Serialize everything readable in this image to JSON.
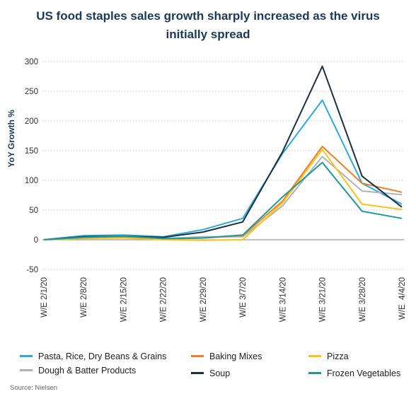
{
  "title": {
    "line1": "US food staples sales growth sharply increased as the virus",
    "line2": "initially spread"
  },
  "source": "Source: Nielsen",
  "chart_data": {
    "type": "line",
    "ylabel": "YoY Growth %",
    "xlabel": "",
    "ylim": [
      -50,
      300
    ],
    "yticks": [
      -50,
      0,
      50,
      100,
      150,
      200,
      250,
      300
    ],
    "grid": "horizontal-dotted",
    "legend_placement": "bottom",
    "categories": [
      "W/E 2/1/20",
      "W/E 2/8/20",
      "W/E 2/15/20",
      "W/E 2/22/20",
      "W/E 2/29/20",
      "W/E 3/7/20",
      "W/E 3/14/20",
      "W/E 3/21/20",
      "W/E 3/28/20",
      "W/E  4/4/20"
    ],
    "series": [
      {
        "name": "Pasta, Rice, Dry Beans & Grains",
        "color": "#29abe2",
        "values": [
          0,
          7,
          8,
          5,
          17,
          36,
          145,
          235,
          95,
          60
        ]
      },
      {
        "name": "Dough & Batter Products",
        "color": "#b3b3b3",
        "values": [
          0,
          3,
          4,
          2,
          5,
          5,
          57,
          140,
          82,
          76
        ]
      },
      {
        "name": "Baking Mixes",
        "color": "#f07e26",
        "values": [
          0,
          3,
          5,
          1,
          3,
          7,
          65,
          157,
          95,
          80
        ]
      },
      {
        "name": "Soup",
        "color": "#1b2f45",
        "values": [
          0,
          5,
          6,
          4,
          13,
          30,
          148,
          292,
          107,
          55
        ]
      },
      {
        "name": "Pizza",
        "color": "#fcc419",
        "values": [
          0,
          2,
          3,
          0,
          -1,
          0,
          62,
          152,
          60,
          51
        ]
      },
      {
        "name": "Frozen Vegetables",
        "color": "#1e9a9a",
        "values": [
          0,
          4,
          6,
          2,
          3,
          8,
          72,
          130,
          48,
          36
        ]
      }
    ]
  }
}
